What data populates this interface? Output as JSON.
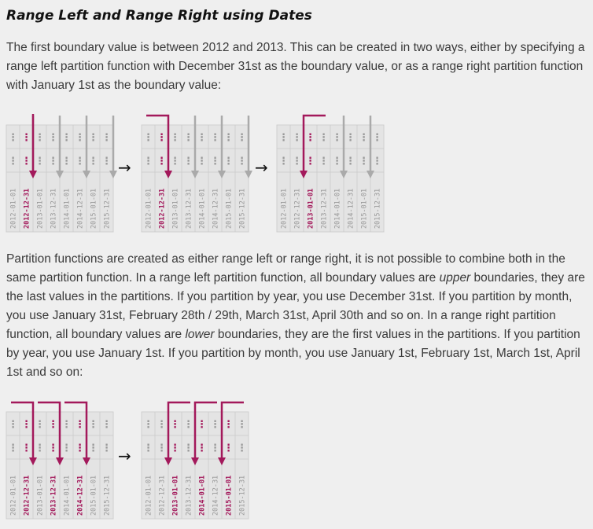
{
  "title": "Range Left and Range Right using Dates",
  "para1": "The first boundary value is between 2012 and 2013. This can be created in two ways, either by specifying a range left partition function with December 31st as the boundary value, or as a range right partition function with January 1st as the boundary value:",
  "para2": {
    "a": "Partition functions are created as either range left or range right, it is not possible to combine both in the same partition function. In a range left partition function, all boundary values are ",
    "a_em": "upper",
    "b": " boundaries, they are the last values in the partitions. If you partition by year, you use December 31st. If you partition by month, you use January 31st, February 28th / 29th, March 31st, April 30th and so on. In a range right partition function, all boundary values are ",
    "b_em": "lower",
    "c": " boundaries, they are the first values in the partitions. If you partition by year, you use January 1st. If you partition by month, you use January 1st, February 1st, March 1st, April 1st and so on:"
  },
  "arrow_glyph": "→",
  "colors": {
    "accent": "#a3195b",
    "gray_arrow": "#aaaaaa",
    "cell_fill": "#e4e4e4",
    "cell_border": "#cfcfcf",
    "label": "#999999"
  },
  "dates": [
    "2012-01-01",
    "2012-12-31",
    "2013-01-01",
    "2013-12-31",
    "2014-01-01",
    "2014-12-31",
    "2015-01-01",
    "2015-12-31"
  ],
  "dots": "⋮",
  "diagrams": [
    {
      "highlight": [
        1
      ],
      "boundaries": [
        {
          "col": 1,
          "dir": "left"
        }
      ],
      "gray_arrows": [
        1,
        3,
        5,
        7
      ]
    },
    {
      "highlight": [
        1
      ],
      "boundaries": [
        {
          "col": 1,
          "dir": "left",
          "hook": true
        }
      ],
      "gray_arrows": [
        3,
        5,
        7
      ]
    },
    {
      "highlight": [
        2
      ],
      "boundaries": [
        {
          "col": 2,
          "dir": "right",
          "hook": true
        }
      ],
      "gray_arrows": [
        4,
        6
      ]
    },
    {
      "highlight": [
        1,
        3,
        5
      ],
      "boundaries": [
        {
          "col": 1,
          "dir": "left",
          "hook": true
        },
        {
          "col": 3,
          "dir": "left",
          "hook": true
        },
        {
          "col": 5,
          "dir": "left",
          "hook": true
        }
      ],
      "gray_arrows": []
    },
    {
      "highlight": [
        2,
        4,
        6
      ],
      "boundaries": [
        {
          "col": 2,
          "dir": "right",
          "hook": true
        },
        {
          "col": 4,
          "dir": "right",
          "hook": true
        },
        {
          "col": 6,
          "dir": "right",
          "hook": true
        }
      ],
      "gray_arrows": []
    }
  ]
}
